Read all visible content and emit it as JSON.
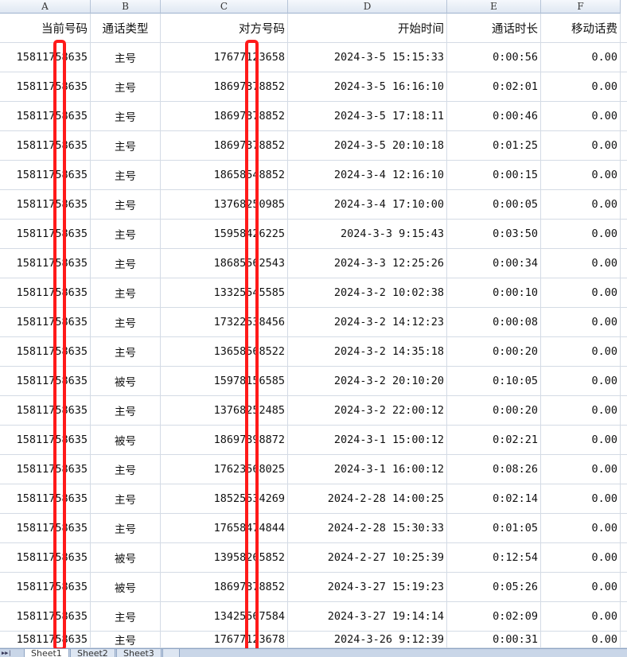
{
  "columns": [
    "A",
    "B",
    "C",
    "D",
    "E",
    "F"
  ],
  "headers": [
    "当前号码",
    "通话类型",
    "对方号码",
    "开始时间",
    "通话时长",
    "移动话费"
  ],
  "rows": [
    [
      "15811758635",
      "主号",
      "17677123658",
      "2024-3-5 15:15:33",
      "0:00:56",
      "0.00"
    ],
    [
      "15811758635",
      "主号",
      "18697378852",
      "2024-3-5 16:16:10",
      "0:02:01",
      "0.00"
    ],
    [
      "15811758635",
      "主号",
      "18697378852",
      "2024-3-5 17:18:11",
      "0:00:46",
      "0.00"
    ],
    [
      "15811758635",
      "主号",
      "18697378852",
      "2024-3-5 20:10:18",
      "0:01:25",
      "0.00"
    ],
    [
      "15811758635",
      "主号",
      "18658548852",
      "2024-3-4 12:16:10",
      "0:00:15",
      "0.00"
    ],
    [
      "15811758635",
      "主号",
      "13768250985",
      "2024-3-4 17:10:00",
      "0:00:05",
      "0.00"
    ],
    [
      "15811758635",
      "主号",
      "15958426225",
      "2024-3-3 9:15:43",
      "0:03:50",
      "0.00"
    ],
    [
      "15811758635",
      "主号",
      "18685562543",
      "2024-3-3 12:25:26",
      "0:00:34",
      "0.00"
    ],
    [
      "15811758635",
      "主号",
      "13325545585",
      "2024-3-2 10:02:38",
      "0:00:10",
      "0.00"
    ],
    [
      "15811758635",
      "主号",
      "17322538456",
      "2024-3-2 14:12:23",
      "0:00:08",
      "0.00"
    ],
    [
      "15811758635",
      "主号",
      "13658568522",
      "2024-3-2 14:35:18",
      "0:00:20",
      "0.00"
    ],
    [
      "15811758635",
      "被号",
      "15978156585",
      "2024-3-2 20:10:20",
      "0:10:05",
      "0.00"
    ],
    [
      "15811758635",
      "主号",
      "13768252485",
      "2024-3-2 22:00:12",
      "0:00:20",
      "0.00"
    ],
    [
      "15811758635",
      "被号",
      "18697398872",
      "2024-3-1 15:00:12",
      "0:02:21",
      "0.00"
    ],
    [
      "15811758635",
      "主号",
      "17623568025",
      "2024-3-1 16:00:12",
      "0:08:26",
      "0.00"
    ],
    [
      "15811758635",
      "主号",
      "18525534269",
      "2024-2-28 14:00:25",
      "0:02:14",
      "0.00"
    ],
    [
      "15811758635",
      "主号",
      "17658474844",
      "2024-2-28 15:30:33",
      "0:01:05",
      "0.00"
    ],
    [
      "15811758635",
      "被号",
      "13958265852",
      "2024-2-27 10:25:39",
      "0:12:54",
      "0.00"
    ],
    [
      "15811758635",
      "被号",
      "18697378852",
      "2024-3-27 15:19:23",
      "0:05:26",
      "0.00"
    ],
    [
      "15811758635",
      "主号",
      "13425567584",
      "2024-3-27 19:14:14",
      "0:02:09",
      "0.00"
    ],
    [
      "15811758635",
      "主号",
      "17677123678",
      "2024-3-26 9:12:39",
      "0:00:31",
      "0.00"
    ]
  ],
  "sheet_tabs": [
    "Sheet1",
    "Sheet2",
    "Sheet3"
  ],
  "redaction_color": "#ff1a1a"
}
